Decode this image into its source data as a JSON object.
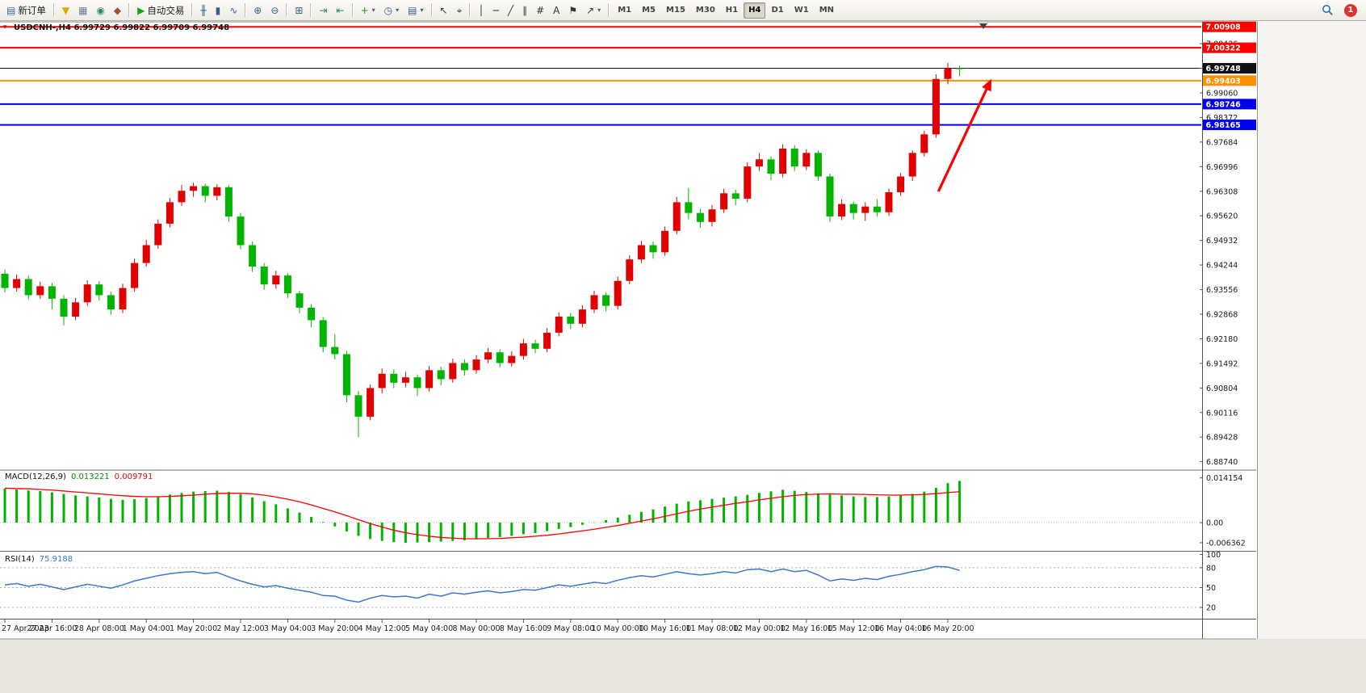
{
  "toolbar": {
    "groups": [
      [
        {
          "name": "new-order",
          "icon": "new-order-icon",
          "glyph": "▤",
          "color": "#3a6ea5",
          "label": "新订单"
        }
      ],
      [
        {
          "name": "mql-funnel",
          "icon": "funnel-icon",
          "glyph": "▼",
          "color": "#e0a800"
        },
        {
          "name": "print",
          "icon": "printer-icon",
          "glyph": "▦",
          "color": "#6b7f9e"
        },
        {
          "name": "refresh",
          "icon": "globe-icon",
          "glyph": "◉",
          "color": "#2e8b57"
        },
        {
          "name": "experts",
          "icon": "expert-icon",
          "glyph": "◆",
          "color": "#a0522d"
        }
      ],
      [
        {
          "name": "auto-trading",
          "icon": "play-icon",
          "glyph": "▶",
          "color": "#1f9d1f",
          "label": "自动交易"
        }
      ],
      [
        {
          "name": "chart-bars",
          "icon": "bar-chart-icon",
          "glyph": "╫",
          "color": "#355e8d"
        },
        {
          "name": "chart-candles",
          "icon": "candlestick-icon",
          "glyph": "▮",
          "color": "#355e8d"
        },
        {
          "name": "chart-line",
          "icon": "line-chart-icon",
          "glyph": "∿",
          "color": "#355e8d"
        }
      ],
      [
        {
          "name": "zoom-in",
          "icon": "zoom-in-icon",
          "glyph": "⊕",
          "color": "#355e8d"
        },
        {
          "name": "zoom-out",
          "icon": "zoom-out-icon",
          "glyph": "⊖",
          "color": "#355e8d"
        }
      ],
      [
        {
          "name": "tile-windows",
          "icon": "tile-windows-icon",
          "glyph": "⊞",
          "color": "#355e8d"
        }
      ],
      [
        {
          "name": "auto-scroll",
          "icon": "auto-scroll-icon",
          "glyph": "⇥",
          "color": "#2e8b57"
        },
        {
          "name": "chart-shift",
          "icon": "chart-shift-icon",
          "glyph": "⇤",
          "color": "#2e8b57"
        }
      ],
      [
        {
          "name": "indicators",
          "icon": "indicators-plus-icon",
          "glyph": "+",
          "color": "#1f9d1f",
          "dropdown": true
        },
        {
          "name": "periods",
          "icon": "clock-icon",
          "glyph": "◷",
          "color": "#355e8d",
          "dropdown": true
        },
        {
          "name": "templates",
          "icon": "template-icon",
          "glyph": "▤",
          "color": "#355e8d",
          "dropdown": true
        }
      ],
      [
        {
          "name": "cursor",
          "icon": "cursor-icon",
          "glyph": "↖",
          "color": "#333333"
        },
        {
          "name": "crosshair",
          "icon": "crosshair-icon",
          "glyph": "⌖",
          "color": "#333333"
        }
      ],
      [
        {
          "name": "vertical-line",
          "icon": "vertical-line-icon",
          "glyph": "│",
          "color": "#333333"
        },
        {
          "name": "horizontal-line",
          "icon": "horizontal-line-icon",
          "glyph": "─",
          "color": "#333333"
        },
        {
          "name": "trendline",
          "icon": "trendline-icon",
          "glyph": "╱",
          "color": "#333333"
        },
        {
          "name": "equidistant-channel",
          "icon": "channel-icon",
          "glyph": "∥",
          "color": "#333333"
        },
        {
          "name": "fibonacci",
          "icon": "fibonacci-icon",
          "glyph": "#",
          "color": "#333333"
        },
        {
          "name": "text",
          "icon": "text-icon",
          "glyph": "A",
          "color": "#333333"
        },
        {
          "name": "arrow-label",
          "icon": "flag-icon",
          "glyph": "⚑",
          "color": "#333333"
        },
        {
          "name": "arrows",
          "icon": "arrow-icon",
          "glyph": "↗",
          "color": "#333333",
          "dropdown": true
        }
      ]
    ],
    "timeframes": [
      "M1",
      "M5",
      "M15",
      "M30",
      "H1",
      "H4",
      "D1",
      "W1",
      "MN"
    ],
    "active_timeframe": "H4",
    "notification_count": "1"
  },
  "chart": {
    "symbol_info": "USDCNH-,H4  6.99729 6.99822 6.99709 6.99748"
  },
  "chart_data": {
    "type": "candlestick",
    "symbol": "USDCNH-",
    "timeframe": "H4",
    "current": {
      "open": 6.99729,
      "high": 6.99822,
      "low": 6.99709,
      "close": 6.99748
    },
    "main_ylim": [
      6.88551,
      7.01026
    ],
    "y_axis_labels": [
      "7.00436",
      "6.99748",
      "6.99060",
      "6.98372",
      "6.97684",
      "6.96996",
      "6.96308",
      "6.95620",
      "6.94932",
      "6.94244",
      "6.93556",
      "6.92868",
      "6.92180",
      "6.91492",
      "6.90804",
      "6.90116",
      "6.89428",
      "6.88740"
    ],
    "x_labels": [
      "27 Apr 2023",
      "27 Apr 16:00",
      "28 Apr 08:00",
      "1 May 04:00",
      "1 May 20:00",
      "2 May 12:00",
      "3 May 04:00",
      "3 May 20:00",
      "4 May 12:00",
      "5 May 04:00",
      "8 May 00:00",
      "8 May 16:00",
      "9 May 08:00",
      "10 May 00:00",
      "10 May 16:00",
      "11 May 08:00",
      "12 May 00:00",
      "12 May 16:00",
      "15 May 12:00",
      "16 May 04:00",
      "16 May 20:00"
    ],
    "bars_per_label": 4,
    "levels": [
      {
        "price": 7.00908,
        "label": "7.00908",
        "color": "#ff0000",
        "width": 2
      },
      {
        "price": 7.00322,
        "label": "7.00322",
        "color": "#ff0000",
        "width": 2
      },
      {
        "price": 6.99748,
        "label": "6.99748",
        "color": "#111111",
        "width": 1
      },
      {
        "price": 6.99403,
        "label": "6.99403",
        "color": "#ff9000",
        "width": 2
      },
      {
        "price": 6.98746,
        "label": "6.98746",
        "color": "#0000ee",
        "width": 2
      },
      {
        "price": 6.98165,
        "label": "6.98165",
        "color": "#0000ee",
        "width": 2
      }
    ],
    "candles": [
      [
        6.94,
        6.9412,
        6.9348,
        6.936
      ],
      [
        6.936,
        6.9398,
        6.935,
        6.9385
      ],
      [
        6.9385,
        6.9395,
        6.9328,
        6.934
      ],
      [
        6.934,
        6.9378,
        6.933,
        6.9365
      ],
      [
        6.9365,
        6.9375,
        6.93,
        6.933
      ],
      [
        6.933,
        6.934,
        6.9255,
        6.928
      ],
      [
        6.928,
        6.9332,
        6.927,
        6.932
      ],
      [
        6.932,
        6.9382,
        6.931,
        6.937
      ],
      [
        6.937,
        6.938,
        6.9325,
        6.934
      ],
      [
        6.934,
        6.935,
        6.9285,
        6.93
      ],
      [
        6.93,
        6.9372,
        6.929,
        6.936
      ],
      [
        6.936,
        6.9442,
        6.935,
        6.943
      ],
      [
        6.943,
        6.9495,
        6.942,
        6.948
      ],
      [
        6.948,
        6.9552,
        6.947,
        6.954
      ],
      [
        6.954,
        6.9612,
        6.953,
        6.96
      ],
      [
        6.96,
        6.9648,
        6.959,
        6.9632
      ],
      [
        6.9632,
        6.9655,
        6.9615,
        6.9645
      ],
      [
        6.9645,
        6.9652,
        6.96,
        6.9618
      ],
      [
        6.9618,
        6.965,
        6.9605,
        6.9642
      ],
      [
        6.9642,
        6.9648,
        6.9545,
        6.956
      ],
      [
        6.956,
        6.957,
        6.9468,
        6.948
      ],
      [
        6.948,
        6.949,
        6.9405,
        6.942
      ],
      [
        6.942,
        6.943,
        6.9355,
        6.937
      ],
      [
        6.937,
        6.9408,
        6.9358,
        6.9395
      ],
      [
        6.9395,
        6.9402,
        6.9332,
        6.9345
      ],
      [
        6.9345,
        6.9352,
        6.929,
        6.9305
      ],
      [
        6.9305,
        6.9315,
        6.925,
        6.927
      ],
      [
        6.927,
        6.9278,
        6.918,
        6.9195
      ],
      [
        6.9195,
        6.923,
        6.916,
        6.9175
      ],
      [
        6.9175,
        6.9185,
        6.904,
        6.906
      ],
      [
        6.906,
        6.9072,
        6.8942,
        6.9
      ],
      [
        6.9,
        6.909,
        6.899,
        6.908
      ],
      [
        6.908,
        6.9135,
        6.9065,
        6.912
      ],
      [
        6.912,
        6.9132,
        6.908,
        6.9095
      ],
      [
        6.9095,
        6.9125,
        6.9082,
        6.911
      ],
      [
        6.911,
        6.9118,
        6.9058,
        6.908
      ],
      [
        6.908,
        6.9142,
        6.907,
        6.913
      ],
      [
        6.913,
        6.914,
        6.9088,
        6.9105
      ],
      [
        6.9105,
        6.9162,
        6.9095,
        6.915
      ],
      [
        6.915,
        6.916,
        6.9115,
        6.913
      ],
      [
        6.913,
        6.9172,
        6.912,
        6.916
      ],
      [
        6.916,
        6.9192,
        6.915,
        6.918
      ],
      [
        6.918,
        6.9188,
        6.9138,
        6.915
      ],
      [
        6.915,
        6.9182,
        6.914,
        6.917
      ],
      [
        6.917,
        6.9218,
        6.916,
        6.9205
      ],
      [
        6.9205,
        6.9215,
        6.9178,
        6.919
      ],
      [
        6.919,
        6.9248,
        6.918,
        6.9235
      ],
      [
        6.9235,
        6.9292,
        6.9225,
        6.928
      ],
      [
        6.928,
        6.929,
        6.9245,
        6.926
      ],
      [
        6.926,
        6.9312,
        6.925,
        6.93
      ],
      [
        6.93,
        6.9352,
        6.929,
        6.934
      ],
      [
        6.934,
        6.9348,
        6.9295,
        6.931
      ],
      [
        6.931,
        6.9392,
        6.93,
        6.938
      ],
      [
        6.938,
        6.9452,
        6.937,
        6.944
      ],
      [
        6.944,
        6.9492,
        6.943,
        6.948
      ],
      [
        6.948,
        6.949,
        6.9442,
        6.946
      ],
      [
        6.946,
        6.9532,
        6.945,
        6.952
      ],
      [
        6.952,
        6.9615,
        6.951,
        6.96
      ],
      [
        6.96,
        6.964,
        6.9552,
        6.957
      ],
      [
        6.957,
        6.9582,
        6.9528,
        6.9545
      ],
      [
        6.9545,
        6.9592,
        6.9532,
        6.958
      ],
      [
        6.958,
        6.9638,
        6.957,
        6.9625
      ],
      [
        6.9625,
        6.9635,
        6.9592,
        6.961
      ],
      [
        6.961,
        6.9712,
        6.96,
        6.97
      ],
      [
        6.97,
        6.9738,
        6.9688,
        6.972
      ],
      [
        6.972,
        6.9728,
        6.9662,
        6.968
      ],
      [
        6.968,
        6.9762,
        6.967,
        6.975
      ],
      [
        6.975,
        6.976,
        6.9688,
        6.97
      ],
      [
        6.97,
        6.9748,
        6.969,
        6.9738
      ],
      [
        6.9738,
        6.9745,
        6.966,
        6.9672
      ],
      [
        6.9672,
        6.968,
        6.9545,
        6.956
      ],
      [
        6.956,
        6.9608,
        6.955,
        6.9595
      ],
      [
        6.9595,
        6.9602,
        6.9552,
        6.957
      ],
      [
        6.957,
        6.96,
        6.9548,
        6.9588
      ],
      [
        6.9588,
        6.9608,
        6.956,
        6.9572
      ],
      [
        6.9572,
        6.9638,
        6.9562,
        6.9628
      ],
      [
        6.9628,
        6.9682,
        6.9618,
        6.9672
      ],
      [
        6.9672,
        6.9745,
        6.966,
        6.9738
      ],
      [
        6.9738,
        6.98,
        6.9728,
        6.979
      ],
      [
        6.979,
        6.9958,
        6.978,
        6.9945
      ],
      [
        6.9945,
        6.999,
        6.993,
        6.9975
      ],
      [
        6.9975,
        6.9982,
        6.9952,
        6.99748
      ]
    ],
    "macd": {
      "label": "MACD(12,26,9)",
      "value": "0.013221",
      "signal_value": "0.009791",
      "ylim": [
        -0.00868,
        0.01612
      ],
      "scale_labels": [
        {
          "v": 0.014154,
          "t": "0.014154"
        },
        {
          "v": 0,
          "t": "0.00"
        },
        {
          "v": -0.006362,
          "t": "-0.006362"
        }
      ],
      "histogram": [
        0.0108,
        0.0105,
        0.0102,
        0.01,
        0.0096,
        0.0091,
        0.0086,
        0.0083,
        0.008,
        0.0075,
        0.0072,
        0.0074,
        0.0078,
        0.0083,
        0.0089,
        0.0094,
        0.0098,
        0.01,
        0.0101,
        0.0097,
        0.009,
        0.008,
        0.0068,
        0.0058,
        0.0045,
        0.0032,
        0.0018,
        0.0002,
        -0.0012,
        -0.0028,
        -0.0042,
        -0.0052,
        -0.0058,
        -0.0062,
        -0.0064,
        -0.0063,
        -0.0062,
        -0.006,
        -0.0058,
        -0.0056,
        -0.0053,
        -0.0049,
        -0.0046,
        -0.0042,
        -0.0037,
        -0.0033,
        -0.0027,
        -0.002,
        -0.0014,
        -0.0007,
        0.0001,
        0.0008,
        0.0016,
        0.0025,
        0.0034,
        0.0042,
        0.0051,
        0.006,
        0.0067,
        0.0071,
        0.0075,
        0.0079,
        0.0083,
        0.0088,
        0.0094,
        0.0099,
        0.0104,
        0.0101,
        0.0097,
        0.0093,
        0.0089,
        0.0086,
        0.0083,
        0.0081,
        0.0081,
        0.0083,
        0.0086,
        0.0091,
        0.0098,
        0.011,
        0.0125,
        0.013221
      ],
      "signal": [
        0.0109,
        0.0108,
        0.0107,
        0.0105,
        0.0103,
        0.01,
        0.0097,
        0.0094,
        0.0091,
        0.0088,
        0.0085,
        0.0083,
        0.0082,
        0.0082,
        0.0083,
        0.0085,
        0.0087,
        0.009,
        0.0092,
        0.0093,
        0.0093,
        0.0091,
        0.0087,
        0.0081,
        0.0074,
        0.0066,
        0.0056,
        0.0045,
        0.0034,
        0.0022,
        0.0009,
        -0.0003,
        -0.0014,
        -0.0024,
        -0.0032,
        -0.0038,
        -0.0043,
        -0.0047,
        -0.0049,
        -0.0051,
        -0.0051,
        -0.0051,
        -0.005,
        -0.0048,
        -0.0046,
        -0.0043,
        -0.004,
        -0.0036,
        -0.0031,
        -0.0026,
        -0.0021,
        -0.0015,
        -0.0009,
        -0.0002,
        0.0005,
        0.0012,
        0.002,
        0.0028,
        0.0036,
        0.0043,
        0.0049,
        0.0055,
        0.0061,
        0.0066,
        0.0072,
        0.0077,
        0.0082,
        0.0086,
        0.0089,
        0.009,
        0.0091,
        0.009,
        0.009,
        0.0089,
        0.0088,
        0.0087,
        0.0087,
        0.0088,
        0.0089,
        0.0092,
        0.0095,
        0.009791
      ]
    },
    "rsi": {
      "label": "RSI(14)",
      "value": "75.9188",
      "ylim": [
        3,
        103
      ],
      "levels": [
        80,
        50,
        20
      ],
      "scale_labels": [
        {
          "v": 100,
          "t": "100"
        },
        {
          "v": 80,
          "t": "80"
        },
        {
          "v": 50,
          "t": "50"
        },
        {
          "v": 20,
          "t": "20"
        }
      ],
      "values": [
        54,
        56,
        52,
        55,
        51,
        47,
        51,
        55,
        52,
        49,
        54,
        60,
        64,
        68,
        71,
        73,
        74,
        71,
        73,
        66,
        60,
        55,
        51,
        53,
        49,
        46,
        43,
        38,
        37,
        31,
        28,
        34,
        38,
        36,
        37,
        34,
        40,
        37,
        42,
        40,
        43,
        45,
        42,
        44,
        47,
        46,
        50,
        54,
        52,
        55,
        58,
        56,
        61,
        65,
        68,
        66,
        70,
        74,
        71,
        69,
        71,
        74,
        72,
        77,
        78,
        74,
        78,
        74,
        76,
        69,
        60,
        63,
        61,
        64,
        62,
        67,
        70,
        74,
        77,
        82,
        81,
        75.9188
      ]
    },
    "arrow": {
      "from_index": 79.2,
      "from_price": 6.963,
      "to_index": 83.6,
      "to_price": 6.9938,
      "color": "#ff0000"
    },
    "colors": {
      "up": "#e00000",
      "down": "#00b400",
      "macd_hist": "#00b400",
      "macd_signal": "#ff0000",
      "rsi_line": "#3c78c8",
      "background": "#ffffff",
      "axis_text": "#1a1a1a"
    }
  }
}
